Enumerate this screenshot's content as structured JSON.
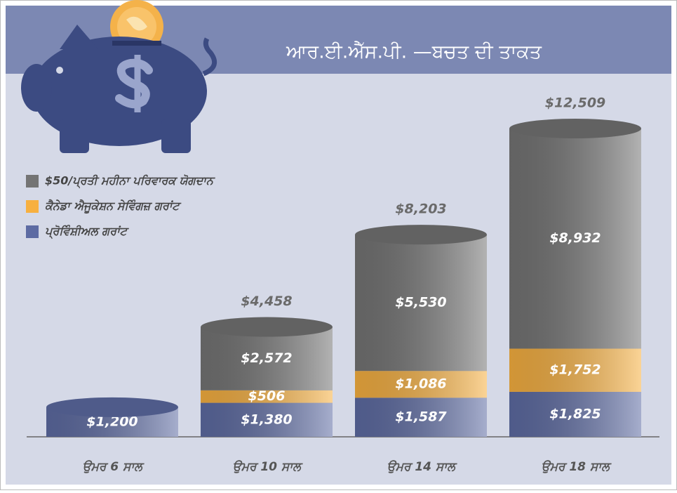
{
  "chart_data": {
    "type": "stacked-cylinder",
    "title": "ਆਰ.ਈ.ਐੱਸ.ਪੀ. —ਬਚਤ ਦੀ ਤਾਕਤ",
    "categories": [
      "ਉਮਰ 6 ਸਾਲ",
      "ਉਮਰ 10 ਸਾਲ",
      "ਉਮਰ 14 ਸਾਲ",
      "ਉਮਰ 18 ਸਾਲ"
    ],
    "series": [
      {
        "name": "ਪ੍ਰੋਵਿੰਸ਼ੀਅਲ ਗਰਾਂਟ",
        "color": "#5d6ba3",
        "values": [
          1200,
          1380,
          1587,
          1825
        ],
        "value_labels": [
          "$1,200",
          "$1,380",
          "$1,587",
          "$1,825"
        ]
      },
      {
        "name": "ਕੈਨੇਡਾ ਐਜੂਕੇਸ਼ਨ ਸੇਵਿੰਗਜ਼ ਗਰਾਂਟ",
        "color": "#f7b040",
        "values": [
          null,
          506,
          1086,
          1752
        ],
        "value_labels": [
          null,
          "$506",
          "$1,086",
          "$1,752"
        ]
      },
      {
        "name": "$50/ਪ੍ਰਤੀ ਮਹੀਨਾ ਪਰਿਵਾਰਕ ਯੋਗਦਾਨ",
        "color": "#747474",
        "values": [
          null,
          2572,
          5530,
          8932
        ],
        "value_labels": [
          null,
          "$2,572",
          "$5,530",
          "$8,932"
        ]
      }
    ],
    "totals": [
      null,
      4458,
      8203,
      12509
    ],
    "total_labels": [
      null,
      "$4,458",
      "$8,203",
      "$12,509"
    ]
  }
}
